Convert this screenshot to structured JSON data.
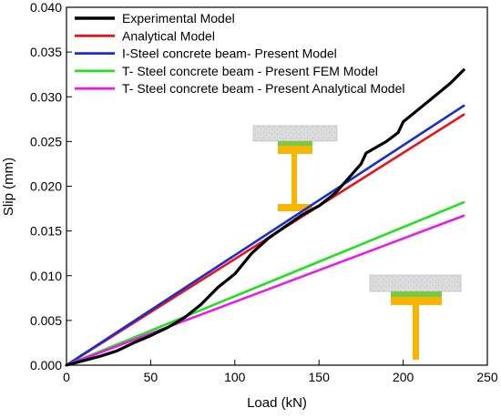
{
  "chart_data": {
    "type": "line",
    "title": "",
    "xlabel": "Load (kN)",
    "ylabel": "Slip (mm)",
    "xlim": [
      0,
      250
    ],
    "ylim": [
      0,
      0.04
    ],
    "x_ticks": [
      0,
      50,
      100,
      150,
      200,
      250
    ],
    "x_tick_labels": [
      "0",
      "50",
      "100",
      "150",
      "200",
      "250"
    ],
    "y_ticks": [
      0,
      0.005,
      0.01,
      0.015,
      0.02,
      0.025,
      0.03,
      0.035,
      0.04
    ],
    "y_tick_labels": [
      "0.000",
      "0.005",
      "0.010",
      "0.015",
      "0.020",
      "0.025",
      "0.030",
      "0.035",
      "0.040"
    ],
    "grid": false,
    "legend_placement": "top-right",
    "series": [
      {
        "name": "Experimental Model",
        "color": "#000000",
        "points": [
          [
            0,
            0
          ],
          [
            10,
            0.0005
          ],
          [
            20,
            0.001
          ],
          [
            30,
            0.0016
          ],
          [
            40,
            0.0025
          ],
          [
            50,
            0.0033
          ],
          [
            60,
            0.0042
          ],
          [
            70,
            0.0053
          ],
          [
            80,
            0.0068
          ],
          [
            90,
            0.0087
          ],
          [
            100,
            0.0102
          ],
          [
            110,
            0.0125
          ],
          [
            120,
            0.0142
          ],
          [
            130,
            0.0155
          ],
          [
            140,
            0.0168
          ],
          [
            150,
            0.0178
          ],
          [
            160,
            0.0193
          ],
          [
            168,
            0.021
          ],
          [
            175,
            0.0225
          ],
          [
            178,
            0.0237
          ],
          [
            190,
            0.025
          ],
          [
            197,
            0.026
          ],
          [
            200,
            0.0272
          ],
          [
            215,
            0.0295
          ],
          [
            228,
            0.0315
          ],
          [
            236,
            0.033
          ]
        ]
      },
      {
        "name": "Analytical Model",
        "color": "#e8141c",
        "points": [
          [
            0,
            0
          ],
          [
            236,
            0.028
          ]
        ]
      },
      {
        "name": "I-Steel concrete beam- Present Model",
        "color": "#1a2bd6",
        "points": [
          [
            0,
            0
          ],
          [
            236,
            0.029
          ]
        ]
      },
      {
        "name": "T- Steel concrete beam - Present FEM Model",
        "color": "#22e01c",
        "points": [
          [
            0,
            0
          ],
          [
            236,
            0.0182
          ]
        ]
      },
      {
        "name": "T- Steel concrete beam - Present Analytical Model",
        "color": "#e81ce8",
        "points": [
          [
            0,
            0
          ],
          [
            236,
            0.0167
          ]
        ]
      }
    ],
    "annotations": [
      {
        "type": "I-beam cross-section illustration",
        "concrete_color": "#d9d9d9",
        "flange_top_color": "#7ac943",
        "steel_color": "#f7b500"
      },
      {
        "type": "T-beam cross-section illustration",
        "concrete_color": "#d9d9d9",
        "flange_top_color": "#7ac943",
        "steel_color": "#f7b500"
      }
    ]
  }
}
